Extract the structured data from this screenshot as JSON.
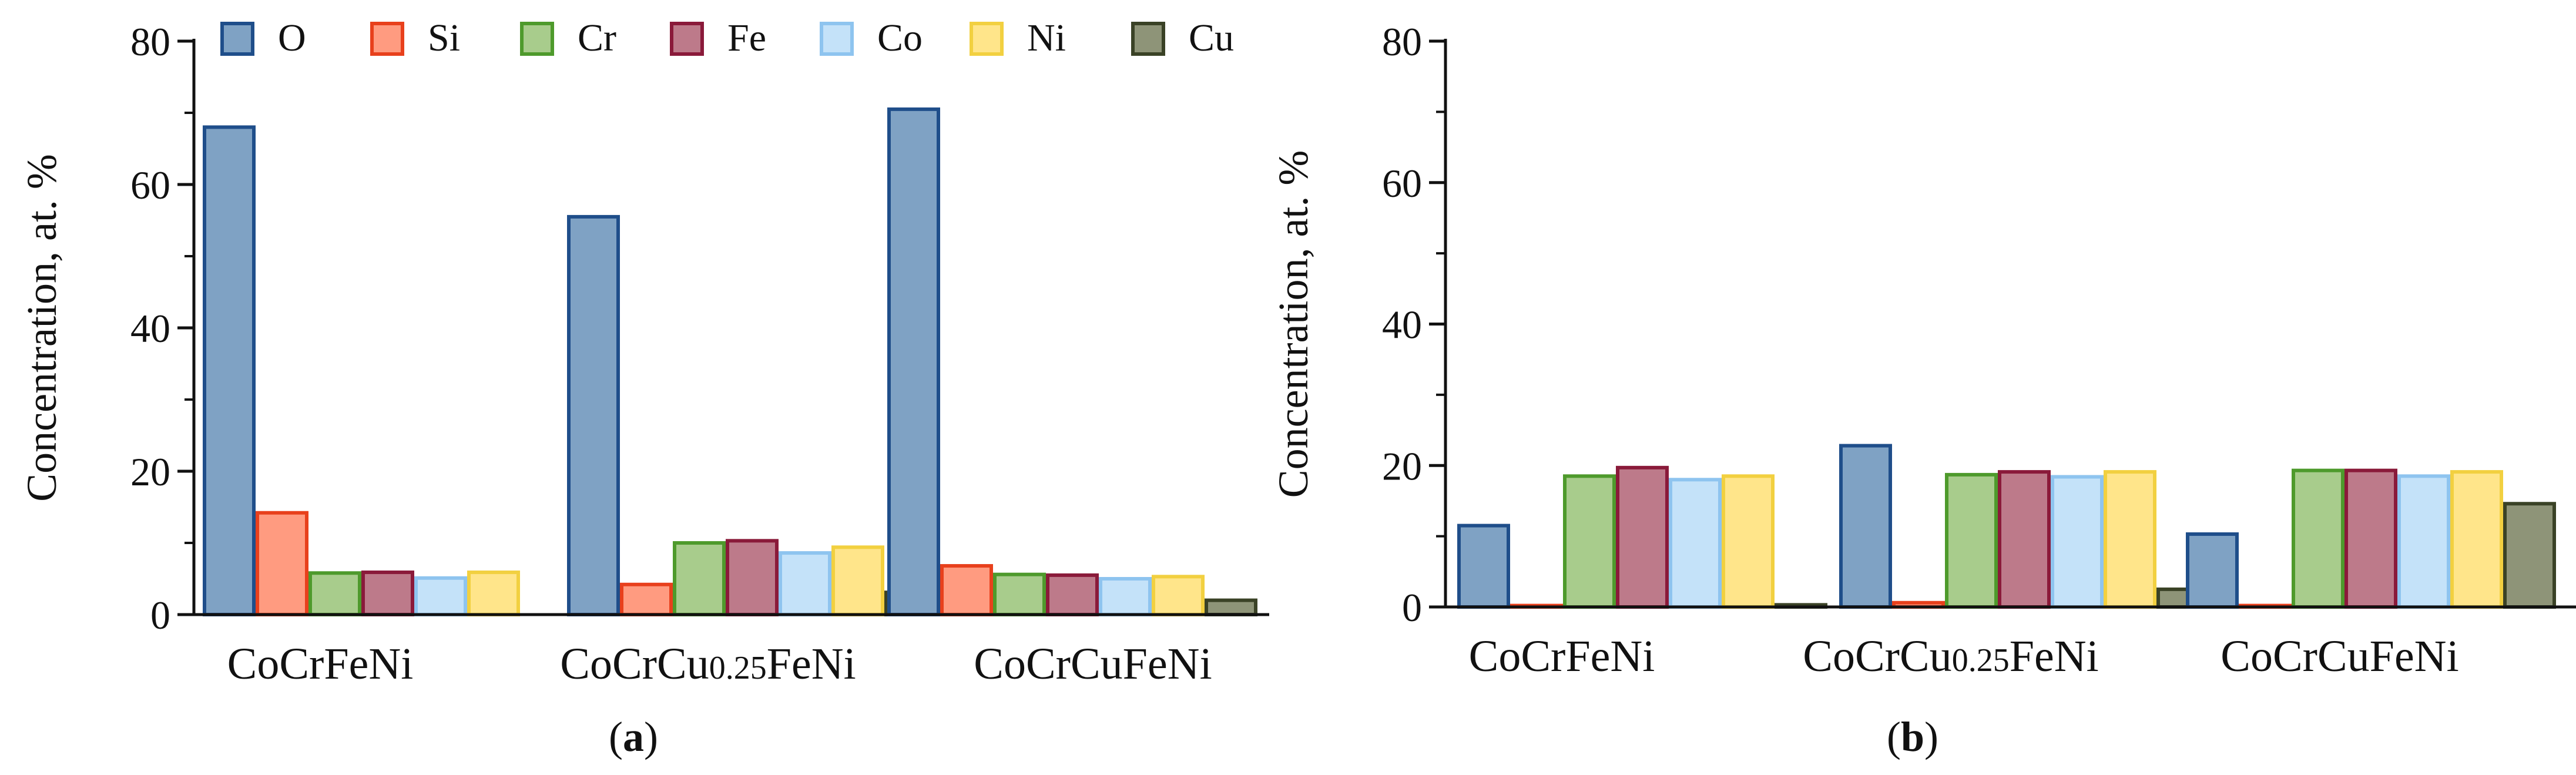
{
  "chart_data": [
    {
      "type": "bar",
      "panel_label": "a",
      "ylabel": "Concentration, at. %",
      "ylim": [
        0,
        80
      ],
      "yticks": [
        "0",
        "20",
        "40",
        "60",
        "80"
      ],
      "categories": [
        "CoCrFeNi",
        "CoCrCu0.25FeNi",
        "CoCrCuFeNi"
      ],
      "category_labels": [
        {
          "main": "CoCrFeNi",
          "sub": "",
          "tail": ""
        },
        {
          "main": "CoCrCu",
          "sub": "0.25",
          "tail": "FeNi"
        },
        {
          "main": "CoCrCuFeNi",
          "sub": "",
          "tail": ""
        }
      ],
      "legend": "top",
      "series": [
        {
          "name": "O",
          "values": [
            68,
            55.5,
            70.5
          ]
        },
        {
          "name": "Si",
          "values": [
            14.2,
            4.2,
            6.8
          ]
        },
        {
          "name": "Cr",
          "values": [
            5.8,
            10,
            5.6
          ]
        },
        {
          "name": "Fe",
          "values": [
            5.9,
            10.3,
            5.5
          ]
        },
        {
          "name": "Co",
          "values": [
            5.1,
            8.6,
            5
          ]
        },
        {
          "name": "Ni",
          "values": [
            5.9,
            9.4,
            5.3
          ]
        },
        {
          "name": "Cu",
          "values": [
            0,
            3.1,
            2
          ]
        }
      ]
    },
    {
      "type": "bar",
      "panel_label": "b",
      "ylabel": "Concentration, at. %",
      "ylim": [
        0,
        80
      ],
      "yticks": [
        "0",
        "20",
        "40",
        "60",
        "80"
      ],
      "categories": [
        "CoCrFeNi",
        "CoCrCu0.25FeNi",
        "CoCrCuFeNi"
      ],
      "category_labels": [
        {
          "main": "CoCrFeNi",
          "sub": "",
          "tail": ""
        },
        {
          "main": "CoCrCu",
          "sub": "0.25",
          "tail": "FeNi"
        },
        {
          "main": "CoCrCuFeNi",
          "sub": "",
          "tail": ""
        }
      ],
      "series": [
        {
          "name": "O",
          "values": [
            11.5,
            22.8,
            10.3
          ]
        },
        {
          "name": "Si",
          "values": [
            0.2,
            0.6,
            0.2
          ]
        },
        {
          "name": "Cr",
          "values": [
            18.5,
            18.7,
            19.3
          ]
        },
        {
          "name": "Fe",
          "values": [
            19.7,
            19.1,
            19.3
          ]
        },
        {
          "name": "Co",
          "values": [
            18,
            18.4,
            18.5
          ]
        },
        {
          "name": "Ni",
          "values": [
            18.5,
            19.1,
            19.1
          ]
        },
        {
          "name": "Cu",
          "values": [
            0.3,
            2.5,
            14.6
          ]
        }
      ]
    }
  ],
  "colors": {
    "O": {
      "fill": "#7fa2c4",
      "stroke": "#1f4e8a"
    },
    "Si": {
      "fill": "#ff9b80",
      "stroke": "#e8401c"
    },
    "Cr": {
      "fill": "#a8cc8c",
      "stroke": "#4e9a2c"
    },
    "Fe": {
      "fill": "#bd7a8a",
      "stroke": "#8a1a3a"
    },
    "Co": {
      "fill": "#c4e2f9",
      "stroke": "#8ec4ef"
    },
    "Ni": {
      "fill": "#ffe58a",
      "stroke": "#f2d040"
    },
    "Cu": {
      "fill": "#8e9478",
      "stroke": "#3a4226"
    }
  }
}
